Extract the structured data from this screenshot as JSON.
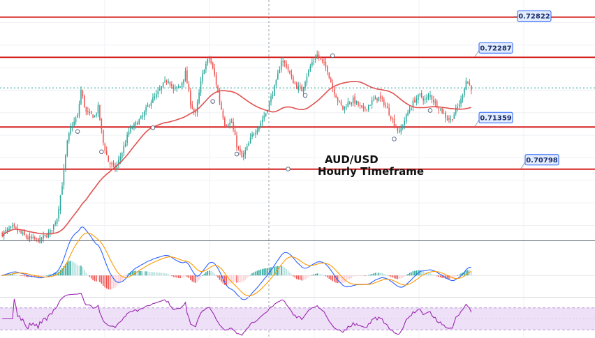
{
  "chart_data": {
    "type": "candlestick",
    "title": "AUD/USD",
    "subtitle": "Hourly Timeframe",
    "pane_range": [
      0.6985,
      0.7305
    ],
    "levels": [
      0.72822,
      0.72287,
      0.71359,
      0.70798
    ],
    "level_labels": [
      "0.72822",
      "0.72287",
      "0.71359",
      "0.70798"
    ],
    "current_price": 0.7188,
    "colors": {
      "up": "#26a69a",
      "down": "#ef5350",
      "level_line": "#d62020",
      "ma_line": "#e0514f",
      "macd_line": "#2962ff",
      "signal_line": "#ff9800",
      "hist_up_strong": "#26a69a",
      "hist_up_weak": "#b2dfdb",
      "hist_down_strong": "#ef5350",
      "hist_down_weak": "#ffcdd2",
      "rsi_line": "#9c27b0",
      "rsi_band": "#ede0f7",
      "label_bg": "#e3ecfb",
      "label_border": "#2962ff",
      "label_text": "#1a2f6e"
    },
    "macd_range": [
      -0.0016,
      0.0028
    ],
    "rsi_range": [
      15,
      90
    ],
    "rsi_band": [
      30,
      70
    ],
    "candles": [],
    "ma": [],
    "macd": [],
    "signal": [],
    "histogram": [],
    "rsi": []
  }
}
